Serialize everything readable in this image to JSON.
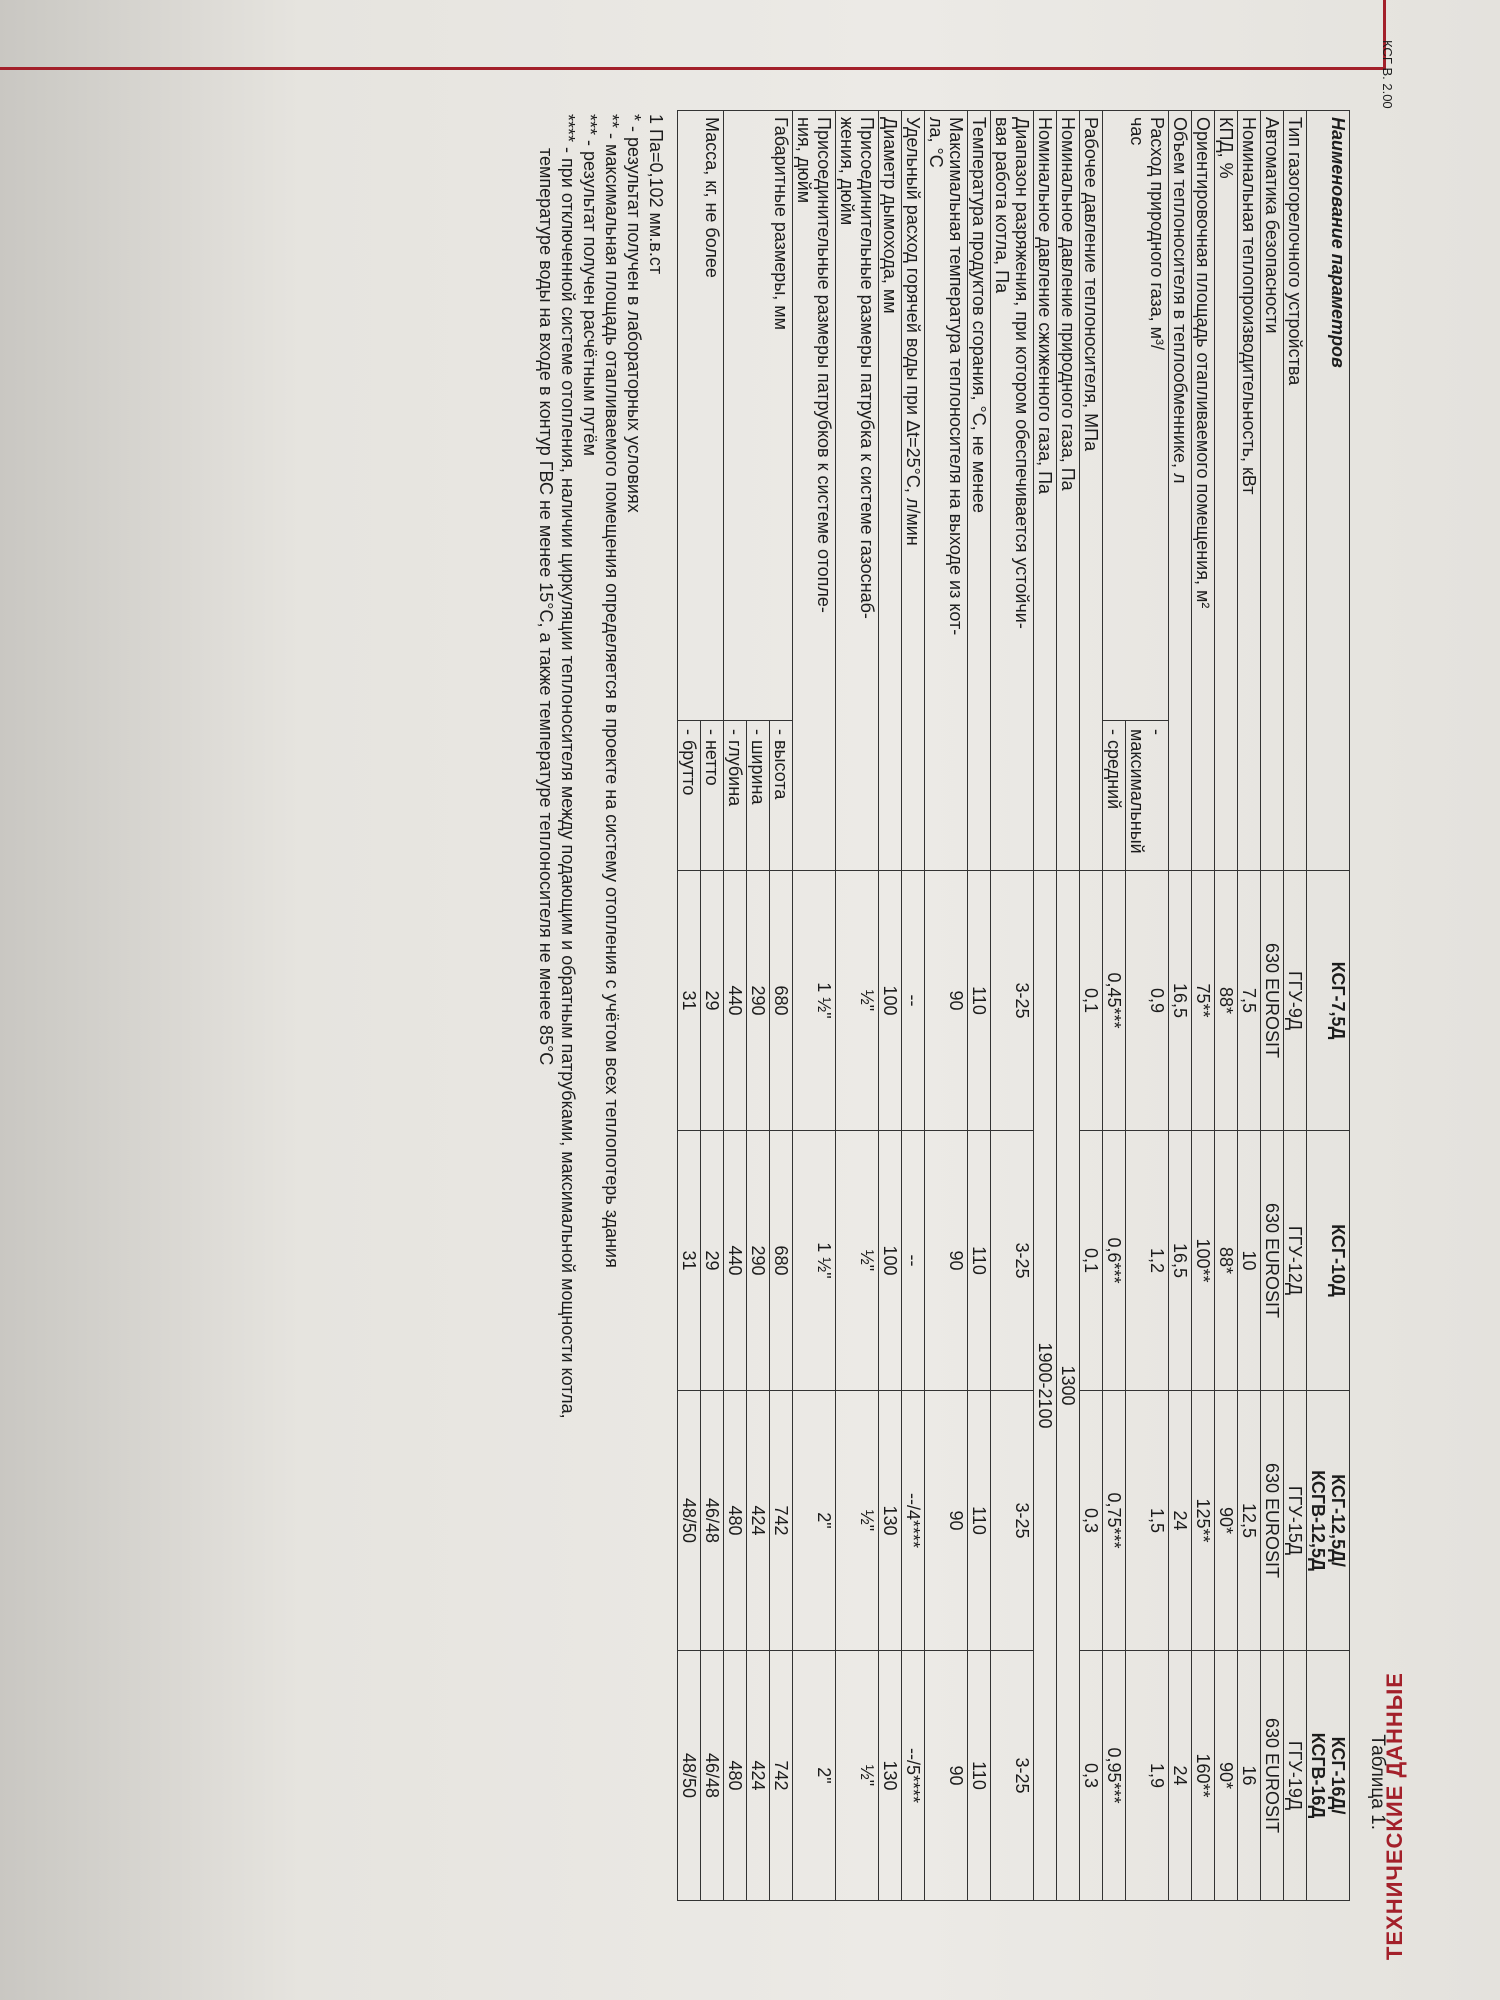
{
  "header": {
    "code": "КСГ В. 2.00",
    "section_title": "ТЕХНИЧЕСКИЕ ДАННЫЕ",
    "table_caption": "Таблица 1."
  },
  "table": {
    "headers": [
      "Наименование параметров",
      "КСГ-7,5Д",
      "КСГ-10Д",
      "КСГ-12,5Д/",
      "КСГ-16Д/"
    ],
    "headers_line2": [
      "",
      "",
      "",
      "КСГВ-12,5Д",
      "КСГВ-16Д"
    ],
    "rows": [
      {
        "label": "Тип газогорелочного устройства",
        "values": [
          "ГГУ-9Д",
          "ГГУ-12Д",
          "ГГУ-15Д",
          "ГГУ-19Д"
        ]
      },
      {
        "label": "Автоматика безопасности",
        "values": [
          "630 EUROSIT",
          "630 EUROSIT",
          "630 EUROSIT",
          "630 EUROSIT"
        ]
      },
      {
        "label": "Номинальная теплопроизводительность, кВт",
        "values": [
          "7,5",
          "10",
          "12,5",
          "16"
        ]
      },
      {
        "label": "КПД, %",
        "values": [
          "88*",
          "88*",
          "90*",
          "90*"
        ]
      },
      {
        "label": "Ориентировочная площадь отапливаемого помещения, м²",
        "values": [
          "75**",
          "100**",
          "125**",
          "160**"
        ]
      },
      {
        "label": "Объем теплоносителя в теплообменнике, л",
        "values": [
          "16,5",
          "16,5",
          "24",
          "24"
        ]
      },
      {
        "label": "Рабочее давление теплоносителя, МПа",
        "values": [
          "0,1",
          "0,1",
          "0,3",
          "0,3"
        ]
      },
      {
        "label": "Номинальное давление природного газа, Па",
        "value": "1300"
      },
      {
        "label": "Номинальное давление сжиженного газа, Па",
        "value": "1900-2100"
      },
      {
        "label_line1": "Диапазон разряжения, при котором обеспечивается устойчи-",
        "label_line2": "вая работа котла, Па",
        "values": [
          "3-25",
          "3-25",
          "3-25",
          "3-25"
        ]
      },
      {
        "label": "Температура продуктов сгорания, °С, не менее",
        "values": [
          "110",
          "110",
          "110",
          "110"
        ]
      },
      {
        "label_line1": "Максимальная температура теплоносителя на выходе из кот-",
        "label_line2": "ла, °С",
        "values": [
          "90",
          "90",
          "90",
          "90"
        ]
      },
      {
        "label": "Удельный расход горячей воды при Δt=25°С, л/мин",
        "values": [
          "--",
          "--",
          "--/4****",
          "--/5****"
        ]
      },
      {
        "label": "Диаметр дымохода, мм",
        "values": [
          "100",
          "100",
          "130",
          "130"
        ]
      },
      {
        "label_line1": "Присоединительные размеры патрубка к системе газоснаб-",
        "label_line2": "жения, дюйм",
        "values": [
          "½\"",
          "½\"",
          "½\"",
          "½\""
        ]
      },
      {
        "label_line1": "Присоединительные размеры патрубков к системе отопле-",
        "label_line2": "ния, дюйм",
        "values": [
          "1 ½\"",
          "1 ½\"",
          "2\"",
          "2\""
        ]
      }
    ],
    "gas_flow": {
      "label_line1": "Расход природного газа, м³/",
      "label_line2": "час",
      "sub_max": "- максимальный",
      "sub_avg": "- средний",
      "max": [
        "0,9",
        "1,2",
        "1,5",
        "1,9"
      ],
      "avg": [
        "0,45***",
        "0,6***",
        "0,75***",
        "0,95***"
      ]
    },
    "dimensions": {
      "label": "Габаритные размеры, мм",
      "sub_height": "- высота",
      "sub_width": "- ширина",
      "sub_depth": "- глубина",
      "height": [
        "680",
        "680",
        "742",
        "742"
      ],
      "width": [
        "290",
        "290",
        "424",
        "424"
      ],
      "depth": [
        "440",
        "440",
        "480",
        "480"
      ]
    },
    "mass": {
      "label": "Масса, кг, не более",
      "sub_net": "- нетто",
      "sub_gross": "- брутто",
      "net": [
        "29",
        "29",
        "46/48",
        "46/48"
      ],
      "gross": [
        "31",
        "31",
        "48/50",
        "48/50"
      ]
    }
  },
  "notes": [
    "1 Па=0,102 мм.в.ст",
    "* - результат получен в лабораторных условиях",
    "** - максимальная площадь отапливаемого помещения определяется в проекте на систему отопления с учётом всех теплопотерь здания",
    "*** - результат получен расчётным путём",
    "**** - при отключенной системе отопления, наличии циркуляции теплоносителя между подающим и обратным патрубками, максимальной мощности котла,",
    "температуре воды на входе в контур ГВС не менее 15°С, а также температуре теплоносителя не менее 85°С"
  ]
}
